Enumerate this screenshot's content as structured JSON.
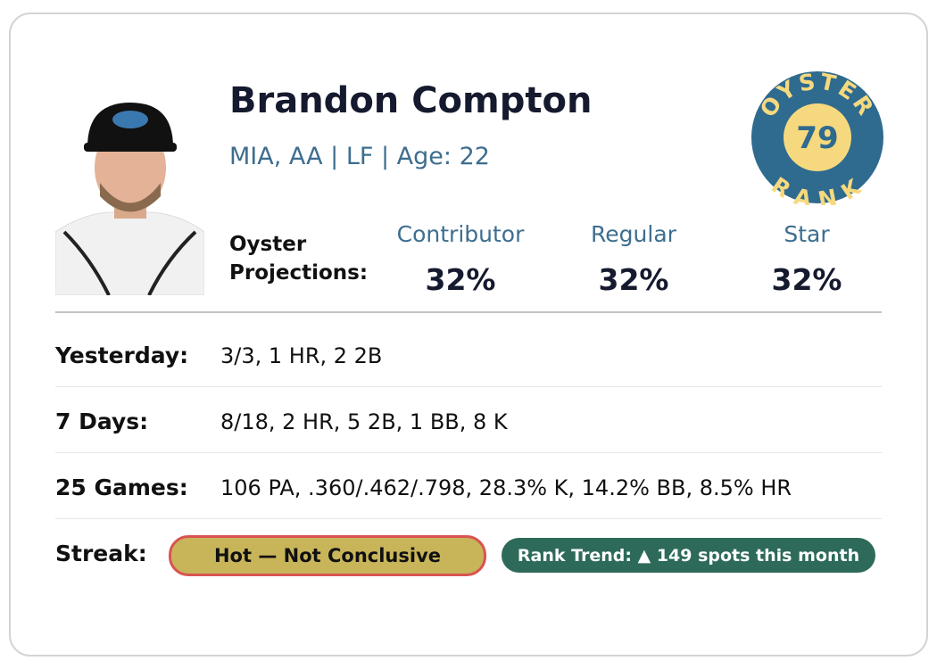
{
  "player": {
    "name": "Brandon Compton",
    "details": "MIA, AA | LF | Age: 22"
  },
  "badge": {
    "top": "OYSTER",
    "rank": "79",
    "bottom": "RANK"
  },
  "projections": {
    "label": "Oyster Projections:",
    "items": [
      {
        "name": "Contributor",
        "value": "32%"
      },
      {
        "name": "Regular",
        "value": "32%"
      },
      {
        "name": "Star",
        "value": "32%"
      }
    ]
  },
  "stats": {
    "rows": [
      {
        "label": "Yesterday:",
        "value": "3/3, 1 HR, 2 2B"
      },
      {
        "label": "7 Days:",
        "value": "8/18, 2 HR, 5 2B, 1 BB, 8 K"
      },
      {
        "label": "25 Games:",
        "value": "106 PA, .360/.462/.798, 28.3% K, 14.2% BB, 8.5% HR"
      }
    ]
  },
  "streak": {
    "label": "Streak:",
    "status": "Hot — Not Conclusive",
    "trend": "Rank Trend: ▲ 149 spots this month"
  }
}
